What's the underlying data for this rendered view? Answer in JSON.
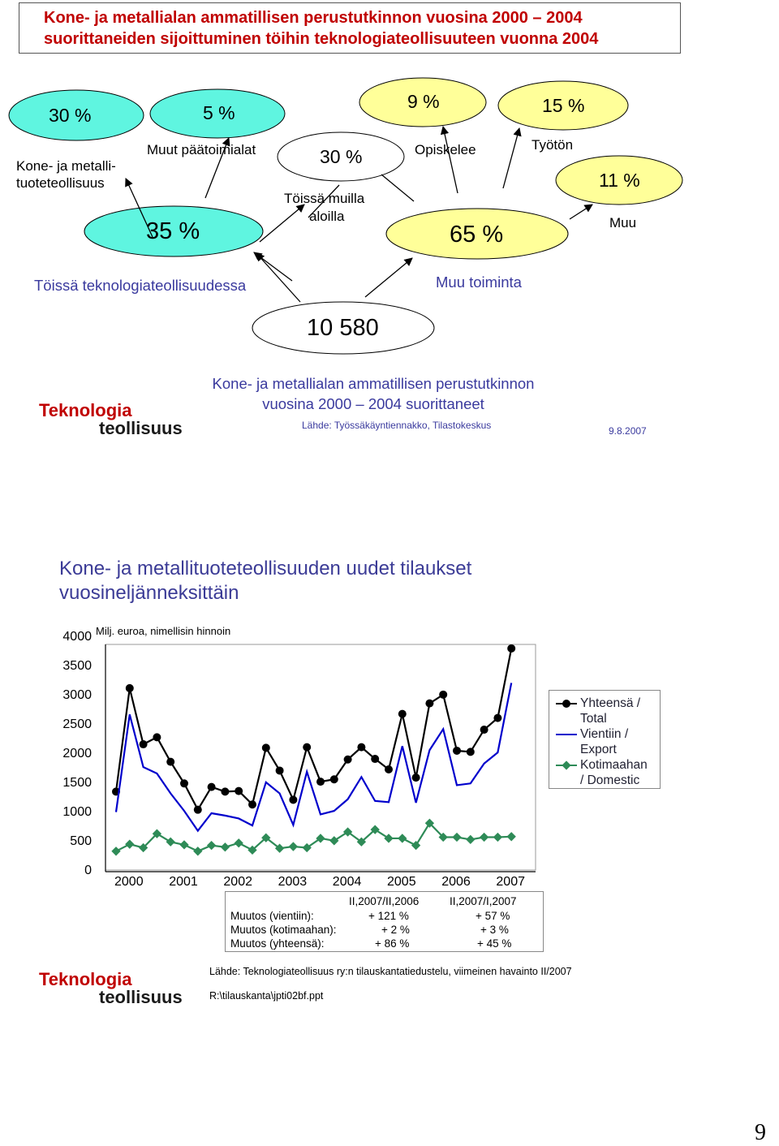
{
  "slide1": {
    "title": "Kone- ja metallialan ammatillisen perustutkinnon vuosina 2000 – 2004 suorittaneiden sijoittuminen töihin teknologiateollisuuteen vuonna 2004",
    "ovals": {
      "kone_metalli": "30 %",
      "muut_paatoimialat": "5 %",
      "toissa_teknologia": "35 %",
      "toissa_muilla": "30 %",
      "opiskelee": "9 %",
      "tyoton": "15 %",
      "muu_toiminta": "65 %",
      "muu": "11 %",
      "total": "10 580"
    },
    "labels": {
      "kone_metalli_line1": "Kone- ja metalli-",
      "kone_metalli_line2": "tuoteteollisuus",
      "muut_paatoimialat": "Muut päätoimialat",
      "toissa_muilla_line1": "Töissä muilla",
      "toissa_muilla_line2": "aloilla",
      "opiskelee": "Opiskelee",
      "tyoton": "Työtön",
      "muu": "Muu",
      "toissa_teknologia": "Töissä teknologiateollisuudessa",
      "muu_toiminta": "Muu toiminta"
    },
    "footer_title_line1": "Kone- ja metallialan ammatillisen perustutkinnon",
    "footer_title_line2": "vuosina 2000 – 2004 suorittaneet",
    "source": "Lähde: Työssäkäyntiennakko, Tilastokeskus",
    "date": "9.8.2007",
    "logo_line1": "Teknologia",
    "logo_line2": "teollisuus"
  },
  "slide2": {
    "title_line1": "Kone- ja metallituoteteollisuuden uudet tilaukset",
    "title_line2": "vuosineljänneksittäin",
    "unit_label": "Milj. euroa, nimellisin hinnoin",
    "legend": [
      "Yhteensä /",
      "Total",
      "Vientiin /",
      "Export",
      "Kotimaahan",
      "/ Domestic"
    ],
    "changes": {
      "col1": "II,2007/II,2006",
      "col2": "II,2007/I,2007",
      "rows": [
        {
          "label": "Muutos (vientiin):",
          "v1": "+ 121 %",
          "v2": "+ 57 %"
        },
        {
          "label": "Muutos (kotimaahan):",
          "v1": "+ 2 %",
          "v2": "+ 3 %"
        },
        {
          "label": "Muutos (yhteensä):",
          "v1": "+ 86 %",
          "v2": "+ 45 %"
        }
      ]
    },
    "source": "Lähde: Teknologiateollisuus ry:n tilauskantatiedustelu, viimeinen havainto II/2007",
    "file_path": "R:\\tilauskanta\\jpti02bf.ppt",
    "logo_line1": "Teknologia",
    "logo_line2": "teollisuus"
  },
  "page_number": "9",
  "chart_data": {
    "type": "line",
    "title": "Kone- ja metallituoteteollisuuden uudet tilaukset vuosineljänneksittäin",
    "ylabel": "Milj. euroa, nimellisin hinnoin",
    "ylim": [
      0,
      4000
    ],
    "yticks": [
      0,
      500,
      1000,
      1500,
      2000,
      2500,
      3000,
      3500,
      4000
    ],
    "x_labels": [
      "2000",
      "2001",
      "2002",
      "2003",
      "2004",
      "2005",
      "2006",
      "2007"
    ],
    "quarters_per_year": 4,
    "legend_placement": "right",
    "series": [
      {
        "name": "Yhteensä / Total",
        "color": "#000000",
        "marker": "circle",
        "values": [
          1370,
          3140,
          2180,
          2300,
          1880,
          1510,
          1060,
          1450,
          1370,
          1380,
          1150,
          2120,
          1730,
          1230,
          2130,
          1540,
          1580,
          1920,
          2130,
          1930,
          1750,
          2700,
          1610,
          2880,
          3030,
          2070,
          2050,
          2430,
          2630,
          3820
        ]
      },
      {
        "name": "Vientiin / Export",
        "color": "#0000cc",
        "marker": "none",
        "values": [
          1020,
          2690,
          1790,
          1680,
          1340,
          1040,
          700,
          1000,
          960,
          910,
          790,
          1530,
          1340,
          800,
          1710,
          980,
          1040,
          1240,
          1620,
          1210,
          1190,
          2150,
          1180,
          2080,
          2440,
          1480,
          1510,
          1850,
          2040,
          3230
        ]
      },
      {
        "name": "Kotimaahan / Domestic",
        "color": "#2e8b57",
        "marker": "diamond",
        "values": [
          350,
          470,
          410,
          650,
          510,
          460,
          350,
          450,
          420,
          490,
          370,
          580,
          400,
          430,
          410,
          570,
          530,
          680,
          510,
          720,
          570,
          570,
          450,
          830,
          590,
          590,
          550,
          590,
          590,
          600
        ]
      }
    ]
  }
}
